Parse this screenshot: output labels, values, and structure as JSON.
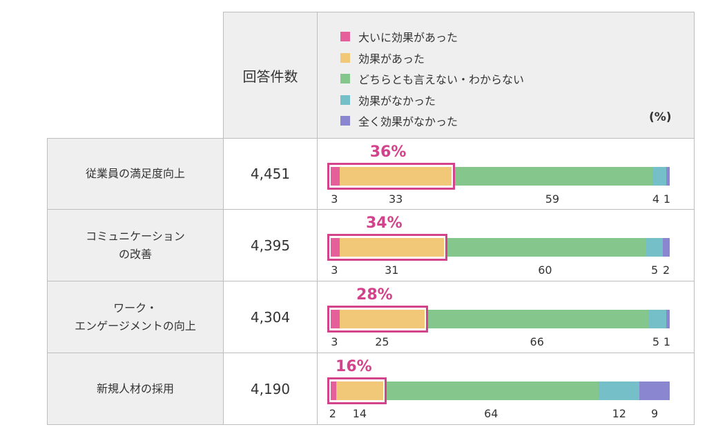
{
  "chart_data": {
    "type": "bar",
    "orientation": "horizontal-stacked-100",
    "unit_label": "(%)",
    "count_header": "回答件数",
    "legend": [
      {
        "name": "大いに効果があった",
        "color": "#e5609a"
      },
      {
        "name": "効果があった",
        "color": "#f0c878"
      },
      {
        "name": "どちらとも言えない・わからない",
        "color": "#84c68c"
      },
      {
        "name": "効果がなかった",
        "color": "#74bfc8"
      },
      {
        "name": "全く効果がなかった",
        "color": "#8a87d0"
      }
    ],
    "highlight_color": "#d2438b",
    "rows": [
      {
        "category": "従業員の満足度向上",
        "count": "4,451",
        "highlight": "36%",
        "values": [
          3,
          33,
          59,
          4,
          1
        ]
      },
      {
        "category": "コミュニケーション\nの改善",
        "count": "4,395",
        "highlight": "34%",
        "values": [
          3,
          31,
          60,
          5,
          2
        ]
      },
      {
        "category": "ワーク・\nエンゲージメントの向上",
        "count": "4,304",
        "highlight": "28%",
        "values": [
          3,
          25,
          66,
          5,
          1
        ]
      },
      {
        "category": "新規人材の採用",
        "count": "4,190",
        "highlight": "16%",
        "values": [
          2,
          14,
          64,
          12,
          9
        ]
      }
    ]
  }
}
